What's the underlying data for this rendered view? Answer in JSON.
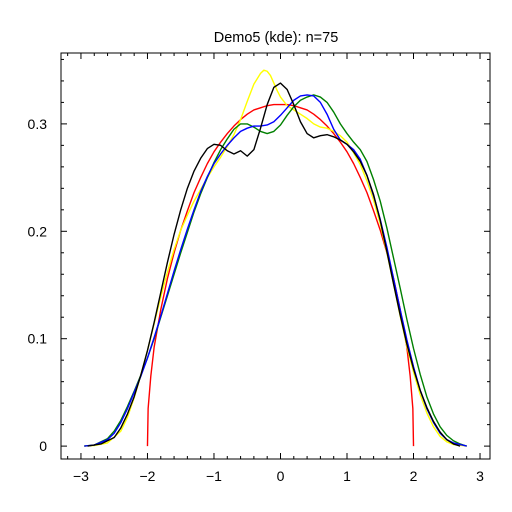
{
  "chart_data": {
    "type": "line",
    "title": "Demo5 (kde): n=75",
    "xlabel": "",
    "ylabel": "",
    "xlim": [
      -3.3,
      3.15
    ],
    "ylim": [
      -0.012,
      0.366
    ],
    "grid": false,
    "legend": "none",
    "x_ticks": [
      {
        "value": -3,
        "label": "−3"
      },
      {
        "value": -2,
        "label": "−2"
      },
      {
        "value": -1,
        "label": "−1"
      },
      {
        "value": 0,
        "label": "0"
      },
      {
        "value": 1,
        "label": "1"
      },
      {
        "value": 2,
        "label": "2"
      },
      {
        "value": 3,
        "label": "3"
      }
    ],
    "y_ticks": [
      {
        "value": 0,
        "label": "0"
      },
      {
        "value": 0.1,
        "label": "0.1"
      },
      {
        "value": 0.2,
        "label": "0.2"
      },
      {
        "value": 0.3,
        "label": "0.3"
      }
    ],
    "series": [
      {
        "name": "red",
        "color": "#ff0000",
        "x": [
          -2.0,
          -1.99,
          -1.95,
          -1.9,
          -1.8,
          -1.7,
          -1.6,
          -1.5,
          -1.4,
          -1.3,
          -1.2,
          -1.1,
          -1.0,
          -0.9,
          -0.8,
          -0.7,
          -0.6,
          -0.5,
          -0.4,
          -0.3,
          -0.2,
          -0.1,
          0.0,
          0.1,
          0.2,
          0.3,
          0.4,
          0.5,
          0.6,
          0.7,
          0.8,
          0.9,
          1.0,
          1.1,
          1.2,
          1.3,
          1.4,
          1.5,
          1.6,
          1.7,
          1.8,
          1.9,
          1.95,
          1.99,
          2.0
        ],
        "y": [
          0.0,
          0.035,
          0.065,
          0.092,
          0.127,
          0.156,
          0.18,
          0.201,
          0.219,
          0.236,
          0.25,
          0.263,
          0.274,
          0.283,
          0.291,
          0.298,
          0.304,
          0.309,
          0.313,
          0.315,
          0.317,
          0.318,
          0.318,
          0.318,
          0.317,
          0.315,
          0.313,
          0.309,
          0.304,
          0.298,
          0.291,
          0.283,
          0.274,
          0.263,
          0.25,
          0.236,
          0.219,
          0.201,
          0.18,
          0.156,
          0.127,
          0.092,
          0.065,
          0.035,
          0.0
        ]
      },
      {
        "name": "yellow",
        "color": "#ffff00",
        "x": [
          -2.95,
          -2.8,
          -2.6,
          -2.4,
          -2.3,
          -2.2,
          -2.1,
          -2.0,
          -1.9,
          -1.8,
          -1.7,
          -1.6,
          -1.5,
          -1.4,
          -1.3,
          -1.2,
          -1.1,
          -1.0,
          -0.9,
          -0.8,
          -0.7,
          -0.6,
          -0.5,
          -0.4,
          -0.3,
          -0.25,
          -0.2,
          -0.15,
          -0.1,
          -0.05,
          0.0,
          0.1,
          0.2,
          0.3,
          0.4,
          0.5,
          0.6,
          0.7,
          0.8,
          0.9,
          1.0,
          1.1,
          1.2,
          1.3,
          1.4,
          1.5,
          1.6,
          1.7,
          1.8,
          1.9,
          2.0,
          2.1,
          2.2,
          2.3,
          2.4,
          2.5,
          2.6,
          2.8
        ],
        "y": [
          0.0,
          0.0005,
          0.003,
          0.014,
          0.027,
          0.045,
          0.066,
          0.089,
          0.114,
          0.139,
          0.162,
          0.183,
          0.201,
          0.215,
          0.228,
          0.239,
          0.25,
          0.26,
          0.269,
          0.279,
          0.29,
          0.304,
          0.321,
          0.337,
          0.347,
          0.35,
          0.349,
          0.345,
          0.338,
          0.331,
          0.325,
          0.317,
          0.313,
          0.309,
          0.305,
          0.3,
          0.297,
          0.296,
          0.293,
          0.289,
          0.283,
          0.273,
          0.262,
          0.247,
          0.229,
          0.207,
          0.18,
          0.151,
          0.121,
          0.093,
          0.069,
          0.048,
          0.031,
          0.018,
          0.009,
          0.004,
          0.0015,
          0.0
        ]
      },
      {
        "name": "green",
        "color": "#008000",
        "x": [
          -2.95,
          -2.8,
          -2.6,
          -2.5,
          -2.4,
          -2.3,
          -2.2,
          -2.1,
          -2.0,
          -1.9,
          -1.8,
          -1.7,
          -1.6,
          -1.5,
          -1.4,
          -1.3,
          -1.2,
          -1.1,
          -1.0,
          -0.9,
          -0.8,
          -0.7,
          -0.6,
          -0.5,
          -0.4,
          -0.3,
          -0.2,
          -0.1,
          0.0,
          0.1,
          0.2,
          0.3,
          0.4,
          0.5,
          0.6,
          0.7,
          0.8,
          0.9,
          1.0,
          1.1,
          1.2,
          1.3,
          1.4,
          1.5,
          1.6,
          1.7,
          1.8,
          1.9,
          2.0,
          2.1,
          2.2,
          2.3,
          2.4,
          2.5,
          2.6,
          2.7,
          2.8
        ],
        "y": [
          0.0,
          0.001,
          0.007,
          0.014,
          0.024,
          0.037,
          0.051,
          0.066,
          0.082,
          0.1,
          0.12,
          0.14,
          0.16,
          0.18,
          0.199,
          0.218,
          0.235,
          0.25,
          0.264,
          0.276,
          0.286,
          0.295,
          0.3,
          0.3,
          0.297,
          0.293,
          0.291,
          0.293,
          0.299,
          0.308,
          0.316,
          0.322,
          0.325,
          0.327,
          0.325,
          0.32,
          0.311,
          0.3,
          0.291,
          0.283,
          0.276,
          0.265,
          0.248,
          0.228,
          0.203,
          0.175,
          0.147,
          0.118,
          0.091,
          0.067,
          0.046,
          0.03,
          0.018,
          0.01,
          0.005,
          0.002,
          0.0
        ]
      },
      {
        "name": "blue",
        "color": "#0000ff",
        "x": [
          -2.95,
          -2.8,
          -2.6,
          -2.5,
          -2.4,
          -2.3,
          -2.2,
          -2.1,
          -2.0,
          -1.9,
          -1.8,
          -1.7,
          -1.6,
          -1.5,
          -1.4,
          -1.3,
          -1.2,
          -1.1,
          -1.0,
          -0.9,
          -0.8,
          -0.7,
          -0.6,
          -0.5,
          -0.4,
          -0.3,
          -0.2,
          -0.1,
          0.0,
          0.1,
          0.2,
          0.3,
          0.4,
          0.5,
          0.6,
          0.7,
          0.8,
          0.9,
          1.0,
          1.1,
          1.2,
          1.3,
          1.4,
          1.5,
          1.6,
          1.7,
          1.8,
          1.9,
          2.0,
          2.1,
          2.2,
          2.3,
          2.4,
          2.5,
          2.6,
          2.8
        ],
        "y": [
          0.0,
          0.001,
          0.006,
          0.012,
          0.022,
          0.035,
          0.05,
          0.065,
          0.082,
          0.101,
          0.121,
          0.142,
          0.163,
          0.183,
          0.202,
          0.22,
          0.237,
          0.251,
          0.263,
          0.272,
          0.28,
          0.287,
          0.293,
          0.296,
          0.298,
          0.298,
          0.299,
          0.302,
          0.308,
          0.315,
          0.322,
          0.326,
          0.327,
          0.326,
          0.32,
          0.309,
          0.295,
          0.285,
          0.281,
          0.276,
          0.267,
          0.252,
          0.233,
          0.211,
          0.185,
          0.156,
          0.127,
          0.099,
          0.074,
          0.052,
          0.035,
          0.022,
          0.012,
          0.006,
          0.003,
          0.0
        ]
      },
      {
        "name": "black",
        "color": "#000000",
        "x": [
          -2.9,
          -2.7,
          -2.5,
          -2.4,
          -2.3,
          -2.2,
          -2.1,
          -2.0,
          -1.9,
          -1.8,
          -1.7,
          -1.6,
          -1.5,
          -1.4,
          -1.3,
          -1.2,
          -1.1,
          -1.0,
          -0.9,
          -0.8,
          -0.7,
          -0.6,
          -0.5,
          -0.4,
          -0.3,
          -0.2,
          -0.1,
          0.0,
          0.1,
          0.2,
          0.3,
          0.4,
          0.5,
          0.6,
          0.7,
          0.8,
          0.9,
          1.0,
          1.1,
          1.2,
          1.3,
          1.4,
          1.5,
          1.6,
          1.7,
          1.8,
          1.9,
          2.0,
          2.1,
          2.2,
          2.3,
          2.4,
          2.5,
          2.6,
          2.7
        ],
        "y": [
          0.0,
          0.002,
          0.008,
          0.017,
          0.03,
          0.046,
          0.066,
          0.089,
          0.115,
          0.143,
          0.171,
          0.197,
          0.22,
          0.24,
          0.256,
          0.268,
          0.277,
          0.281,
          0.28,
          0.275,
          0.272,
          0.275,
          0.27,
          0.276,
          0.296,
          0.318,
          0.334,
          0.338,
          0.332,
          0.318,
          0.302,
          0.291,
          0.287,
          0.289,
          0.29,
          0.288,
          0.285,
          0.281,
          0.274,
          0.265,
          0.252,
          0.234,
          0.21,
          0.181,
          0.151,
          0.122,
          0.095,
          0.072,
          0.052,
          0.036,
          0.023,
          0.013,
          0.006,
          0.002,
          0.0
        ]
      }
    ]
  }
}
